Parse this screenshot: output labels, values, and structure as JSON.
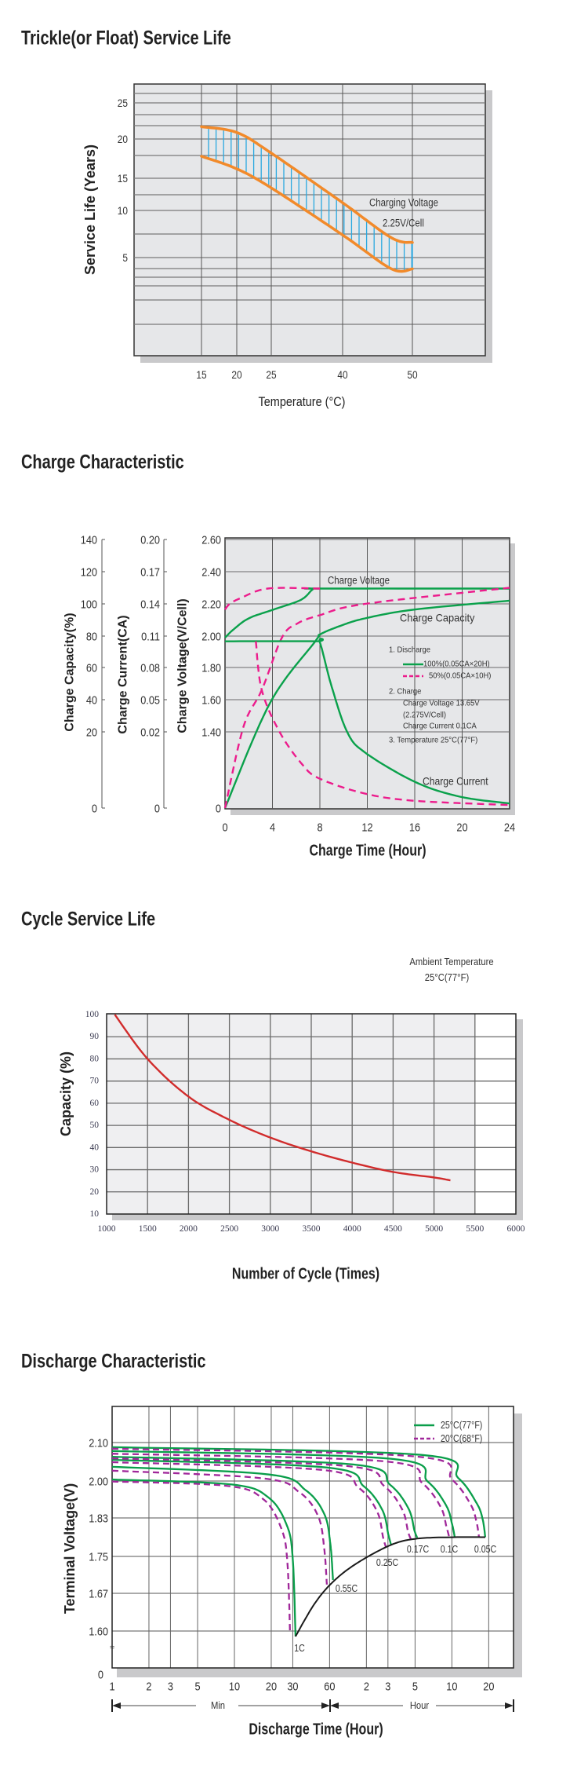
{
  "chart_data": [
    {
      "type": "line",
      "title": "Trickle(or Float) Service Life",
      "xlabel": "Temperature (°C)",
      "ylabel": "Service Life (Years)",
      "x_ticks": [
        15,
        20,
        25,
        40,
        50
      ],
      "y_ticks": [
        25,
        20,
        15,
        10,
        5
      ],
      "grid": true,
      "band_fill": "vertical hatch",
      "colors": {
        "curve": "#f28a2a",
        "hatch": "#2aa8e0",
        "plot_bg": "#e6e7e9"
      },
      "series": [
        {
          "x": [
            15,
            20,
            25,
            40,
            47,
            50
          ],
          "y": [
            21.7,
            20.9,
            18.2,
            11.2,
            7.1,
            6.6
          ]
        },
        {
          "x": [
            15,
            20,
            25,
            40,
            47,
            50
          ],
          "y": [
            17.8,
            16.2,
            13.5,
            7.4,
            3.8,
            3.8
          ]
        }
      ],
      "annotations": [
        "Charging Voltage",
        "2.25V/Cell"
      ]
    },
    {
      "type": "line",
      "title": "Charge Characteristic",
      "xlabel": "Charge Time (Hour)",
      "x_ticks": [
        0,
        4,
        8,
        12,
        16,
        20,
        24
      ],
      "xlim": [
        0,
        24
      ],
      "grid": true,
      "y_axes": [
        {
          "label": "Charge Capacity(%)",
          "ticks": [
            "140",
            "120",
            "100",
            "80",
            "60",
            "40",
            "20",
            "0"
          ]
        },
        {
          "label": "Charge Current(CA)",
          "ticks": [
            "0.20",
            "0.17",
            "0.14",
            "0.11",
            "0.08",
            "0.05",
            "0.02",
            "0"
          ]
        },
        {
          "label": "Charge Voltage(V/Cell)",
          "ticks": [
            "2.60",
            "2.40",
            "2.20",
            "2.00",
            "1.80",
            "1.60",
            "1.40",
            "0"
          ]
        }
      ],
      "colors": {
        "solid": "#0aa14b",
        "dashed": "#ec1c8c",
        "plot_bg": "#e6e7e9"
      },
      "series": [
        {
          "axis": 2,
          "legend": 0,
          "dashed": false,
          "points": [
            [
              0,
              1.99
            ],
            [
              0.7,
              2.04
            ],
            [
              2,
              2.11
            ],
            [
              4.1,
              2.165
            ],
            [
              6.4,
              2.225
            ],
            [
              7.4,
              2.29
            ],
            [
              8,
              2.295
            ],
            [
              24,
              2.295
            ]
          ]
        },
        {
          "axis": 2,
          "legend": 1,
          "dashed": true,
          "points": [
            [
              0,
              2.165
            ],
            [
              0.4,
              2.2
            ],
            [
              1.3,
              2.235
            ],
            [
              3.6,
              2.295
            ],
            [
              8,
              2.295
            ]
          ]
        },
        {
          "axis": 0,
          "legend": 0,
          "dashed": false,
          "points": [
            [
              0,
              0
            ],
            [
              3.8,
              38
            ],
            [
              7.6,
              76.5
            ],
            [
              8,
              80.9
            ],
            [
              9.6,
              86
            ],
            [
              11.8,
              91
            ],
            [
              16,
              96.5
            ],
            [
              24,
              102
            ]
          ]
        },
        {
          "axis": 0,
          "legend": 1,
          "dashed": true,
          "points": [
            [
              0,
              0
            ],
            [
              1.55,
              23
            ],
            [
              3.1,
              46
            ],
            [
              4.8,
              79
            ],
            [
              6.1,
              87.8
            ],
            [
              8,
              93
            ],
            [
              11.8,
              100
            ],
            [
              24,
              110
            ]
          ]
        },
        {
          "axis": 1,
          "legend": 0,
          "dashed": false,
          "points": [
            [
              0,
              0.105
            ],
            [
              7.6,
              0.105
            ],
            [
              8,
              0.104
            ],
            [
              9,
              0.062
            ],
            [
              10.3,
              0.02
            ],
            [
              11.8,
              0.0146
            ],
            [
              16,
              0.0069
            ],
            [
              19.8,
              0.003
            ],
            [
              24,
              0.0012
            ]
          ]
        },
        {
          "axis": 1,
          "legend": 1,
          "dashed": true,
          "points": [
            [
              2.6,
              0.105
            ],
            [
              3.1,
              0.059
            ],
            [
              4.6,
              0.02
            ],
            [
              6.5,
              0.0115
            ],
            [
              8,
              0.0077
            ],
            [
              11.8,
              0.0038
            ],
            [
              16,
              0.0019
            ],
            [
              24,
              0.0008
            ]
          ]
        }
      ],
      "annotations": [
        "Charge Voltage",
        "Charge Capacity",
        "Charge Current"
      ],
      "legend": {
        "placement": "inside right",
        "items": [
          "100%(0.05CA×20H)",
          "50%(0.05CA×10H)"
        ],
        "notes": [
          "1. Discharge",
          "2. Charge",
          "Charge Voltage 13.65V",
          "(2.275V/Cell)",
          "Charge Current 0.1CA",
          "3. Temperature 25°C(77°F)"
        ]
      }
    },
    {
      "type": "line",
      "title": "Cycle Service Life",
      "xlabel": "Number of Cycle (Times)",
      "ylabel": "Capacity (%)",
      "x_ticks": [
        1000,
        1500,
        2000,
        2500,
        3000,
        3500,
        4000,
        4500,
        5000,
        5500,
        6000
      ],
      "y_ticks": [
        100,
        90,
        80,
        70,
        60,
        50,
        40,
        30,
        20,
        10
      ],
      "xlim": [
        1000,
        6000
      ],
      "ylim": [
        10,
        100
      ],
      "grid": true,
      "colors": {
        "curve": "#d12c2c",
        "plot_bg": "#efeff1"
      },
      "series": [
        {
          "x": [
            1100,
            1500,
            2000,
            2500,
            3000,
            3500,
            4000,
            4500,
            5000,
            5200
          ],
          "y": [
            100,
            80,
            63,
            52.5,
            44.5,
            38.3,
            33.2,
            29,
            26.5,
            25.2
          ]
        }
      ],
      "annotations": [
        "Ambient Temperature",
        "25°C(77°F)"
      ]
    },
    {
      "type": "line",
      "title": "Discharge Characteristic",
      "xlabel": "Discharge Time (Hour)",
      "ylabel": "Terminal Voltage(V)",
      "x_scale": "log",
      "x_tick_labels": [
        "1",
        "2",
        "3",
        "5",
        "10",
        "20",
        "30",
        "60",
        "2",
        "3",
        "5",
        "10",
        "20"
      ],
      "x_tick_minutes": [
        1,
        2,
        3,
        5,
        10,
        20,
        30,
        60,
        120,
        180,
        300,
        600,
        1200
      ],
      "x_ranges": [
        "Min",
        "Hour"
      ],
      "y_ticks": [
        "2.10",
        "2.00",
        "1.83",
        "1.75",
        "1.67",
        "1.60"
      ],
      "y_zero": "0",
      "axis_break": "≈",
      "grid": true,
      "colors": {
        "t25": "#0a9e4a",
        "t20": "#a0279a",
        "end_voltage": "#1a1a1a"
      },
      "legend": {
        "placement": "top-right",
        "items": [
          "25°C(77°F)",
          "20°C(68°F)"
        ]
      },
      "rate_labels": [
        "1C",
        "0.55C",
        "0.25C",
        "0.17C",
        "0.1C",
        "0.05C"
      ],
      "series": [
        {
          "legend": 0,
          "rate": 0,
          "points": [
            [
              1,
              2.004
            ],
            [
              9.5,
              1.984
            ],
            [
              19,
              1.924
            ],
            [
              26.9,
              1.814
            ],
            [
              30,
              1.744
            ],
            [
              31.6,
              1.59
            ]
          ]
        },
        {
          "legend": 0,
          "rate": 1,
          "points": [
            [
              1,
              2.037
            ],
            [
              19.2,
              2.017
            ],
            [
              38.4,
              1.957
            ],
            [
              54.4,
              1.847
            ],
            [
              60.8,
              1.777
            ],
            [
              64,
              1.699
            ]
          ]
        },
        {
          "legend": 0,
          "rate": 2,
          "points": [
            [
              1,
              2.055
            ],
            [
              57.3,
              2.035
            ],
            [
              114.6,
              1.975
            ],
            [
              162.4,
              1.865
            ],
            [
              181.5,
              1.795
            ],
            [
              191,
              1.774
            ]
          ]
        },
        {
          "legend": 0,
          "rate": 3,
          "points": [
            [
              1,
              2.063
            ],
            [
              93.6,
              2.043
            ],
            [
              187.2,
              1.983
            ],
            [
              265.2,
              1.873
            ],
            [
              296.4,
              1.804
            ],
            [
              312,
              1.789
            ]
          ]
        },
        {
          "legend": 0,
          "rate": 4,
          "points": [
            [
              1,
              2.078
            ],
            [
              189.9,
              2.058
            ],
            [
              379.8,
              1.998
            ],
            [
              538,
              1.888
            ],
            [
              601,
              1.818
            ],
            [
              633,
              1.79
            ]
          ]
        },
        {
          "legend": 0,
          "rate": 5,
          "points": [
            [
              1,
              2.088
            ],
            [
              337.5,
              2.068
            ],
            [
              675,
              2.008
            ],
            [
              956,
              1.898
            ],
            [
              1069,
              1.828
            ],
            [
              1125,
              1.79
            ]
          ]
        },
        {
          "legend": 1,
          "rate": 0,
          "points": [
            [
              1,
              1.998
            ],
            [
              8.6,
              1.978
            ],
            [
              17.1,
              1.918
            ],
            [
              24.2,
              1.808
            ],
            [
              27.1,
              1.738
            ],
            [
              28.5,
              1.595
            ]
          ]
        },
        {
          "legend": 1,
          "rate": 1,
          "points": [
            [
              1,
              2.027
            ],
            [
              17.1,
              2.007
            ],
            [
              34.2,
              1.947
            ],
            [
              48.5,
              1.837
            ],
            [
              54.2,
              1.767
            ],
            [
              57,
              1.689
            ]
          ]
        },
        {
          "legend": 1,
          "rate": 2,
          "points": [
            [
              1,
              2.049
            ],
            [
              51.9,
              2.029
            ],
            [
              103.8,
              1.969
            ],
            [
              147,
              1.859
            ],
            [
              164.4,
              1.789
            ],
            [
              173,
              1.77
            ]
          ]
        },
        {
          "legend": 1,
          "rate": 3,
          "points": [
            [
              1,
              2.059
            ],
            [
              83.1,
              2.039
            ],
            [
              166.2,
              1.979
            ],
            [
              235.5,
              1.869
            ],
            [
              263.2,
              1.801
            ],
            [
              277,
              1.786
            ]
          ]
        },
        {
          "legend": 1,
          "rate": 4,
          "points": [
            [
              1,
              2.071
            ],
            [
              171.3,
              2.051
            ],
            [
              342.6,
              1.991
            ],
            [
              485.4,
              1.881
            ],
            [
              542.5,
              1.811
            ],
            [
              571,
              1.79
            ]
          ]
        },
        {
          "legend": 1,
          "rate": 5,
          "points": [
            [
              1,
              2.084
            ],
            [
              300,
              2.064
            ],
            [
              600,
              2.004
            ],
            [
              850,
              1.894
            ],
            [
              950,
              1.824
            ],
            [
              1000,
              1.79
            ]
          ]
        }
      ],
      "end_voltage_curve": [
        [
          31.6,
          1.59
        ],
        [
          45,
          1.65
        ],
        [
          64,
          1.695
        ],
        [
          100,
          1.735
        ],
        [
          191,
          1.774
        ],
        [
          312,
          1.787
        ],
        [
          633,
          1.79
        ],
        [
          1125,
          1.79
        ]
      ]
    }
  ]
}
